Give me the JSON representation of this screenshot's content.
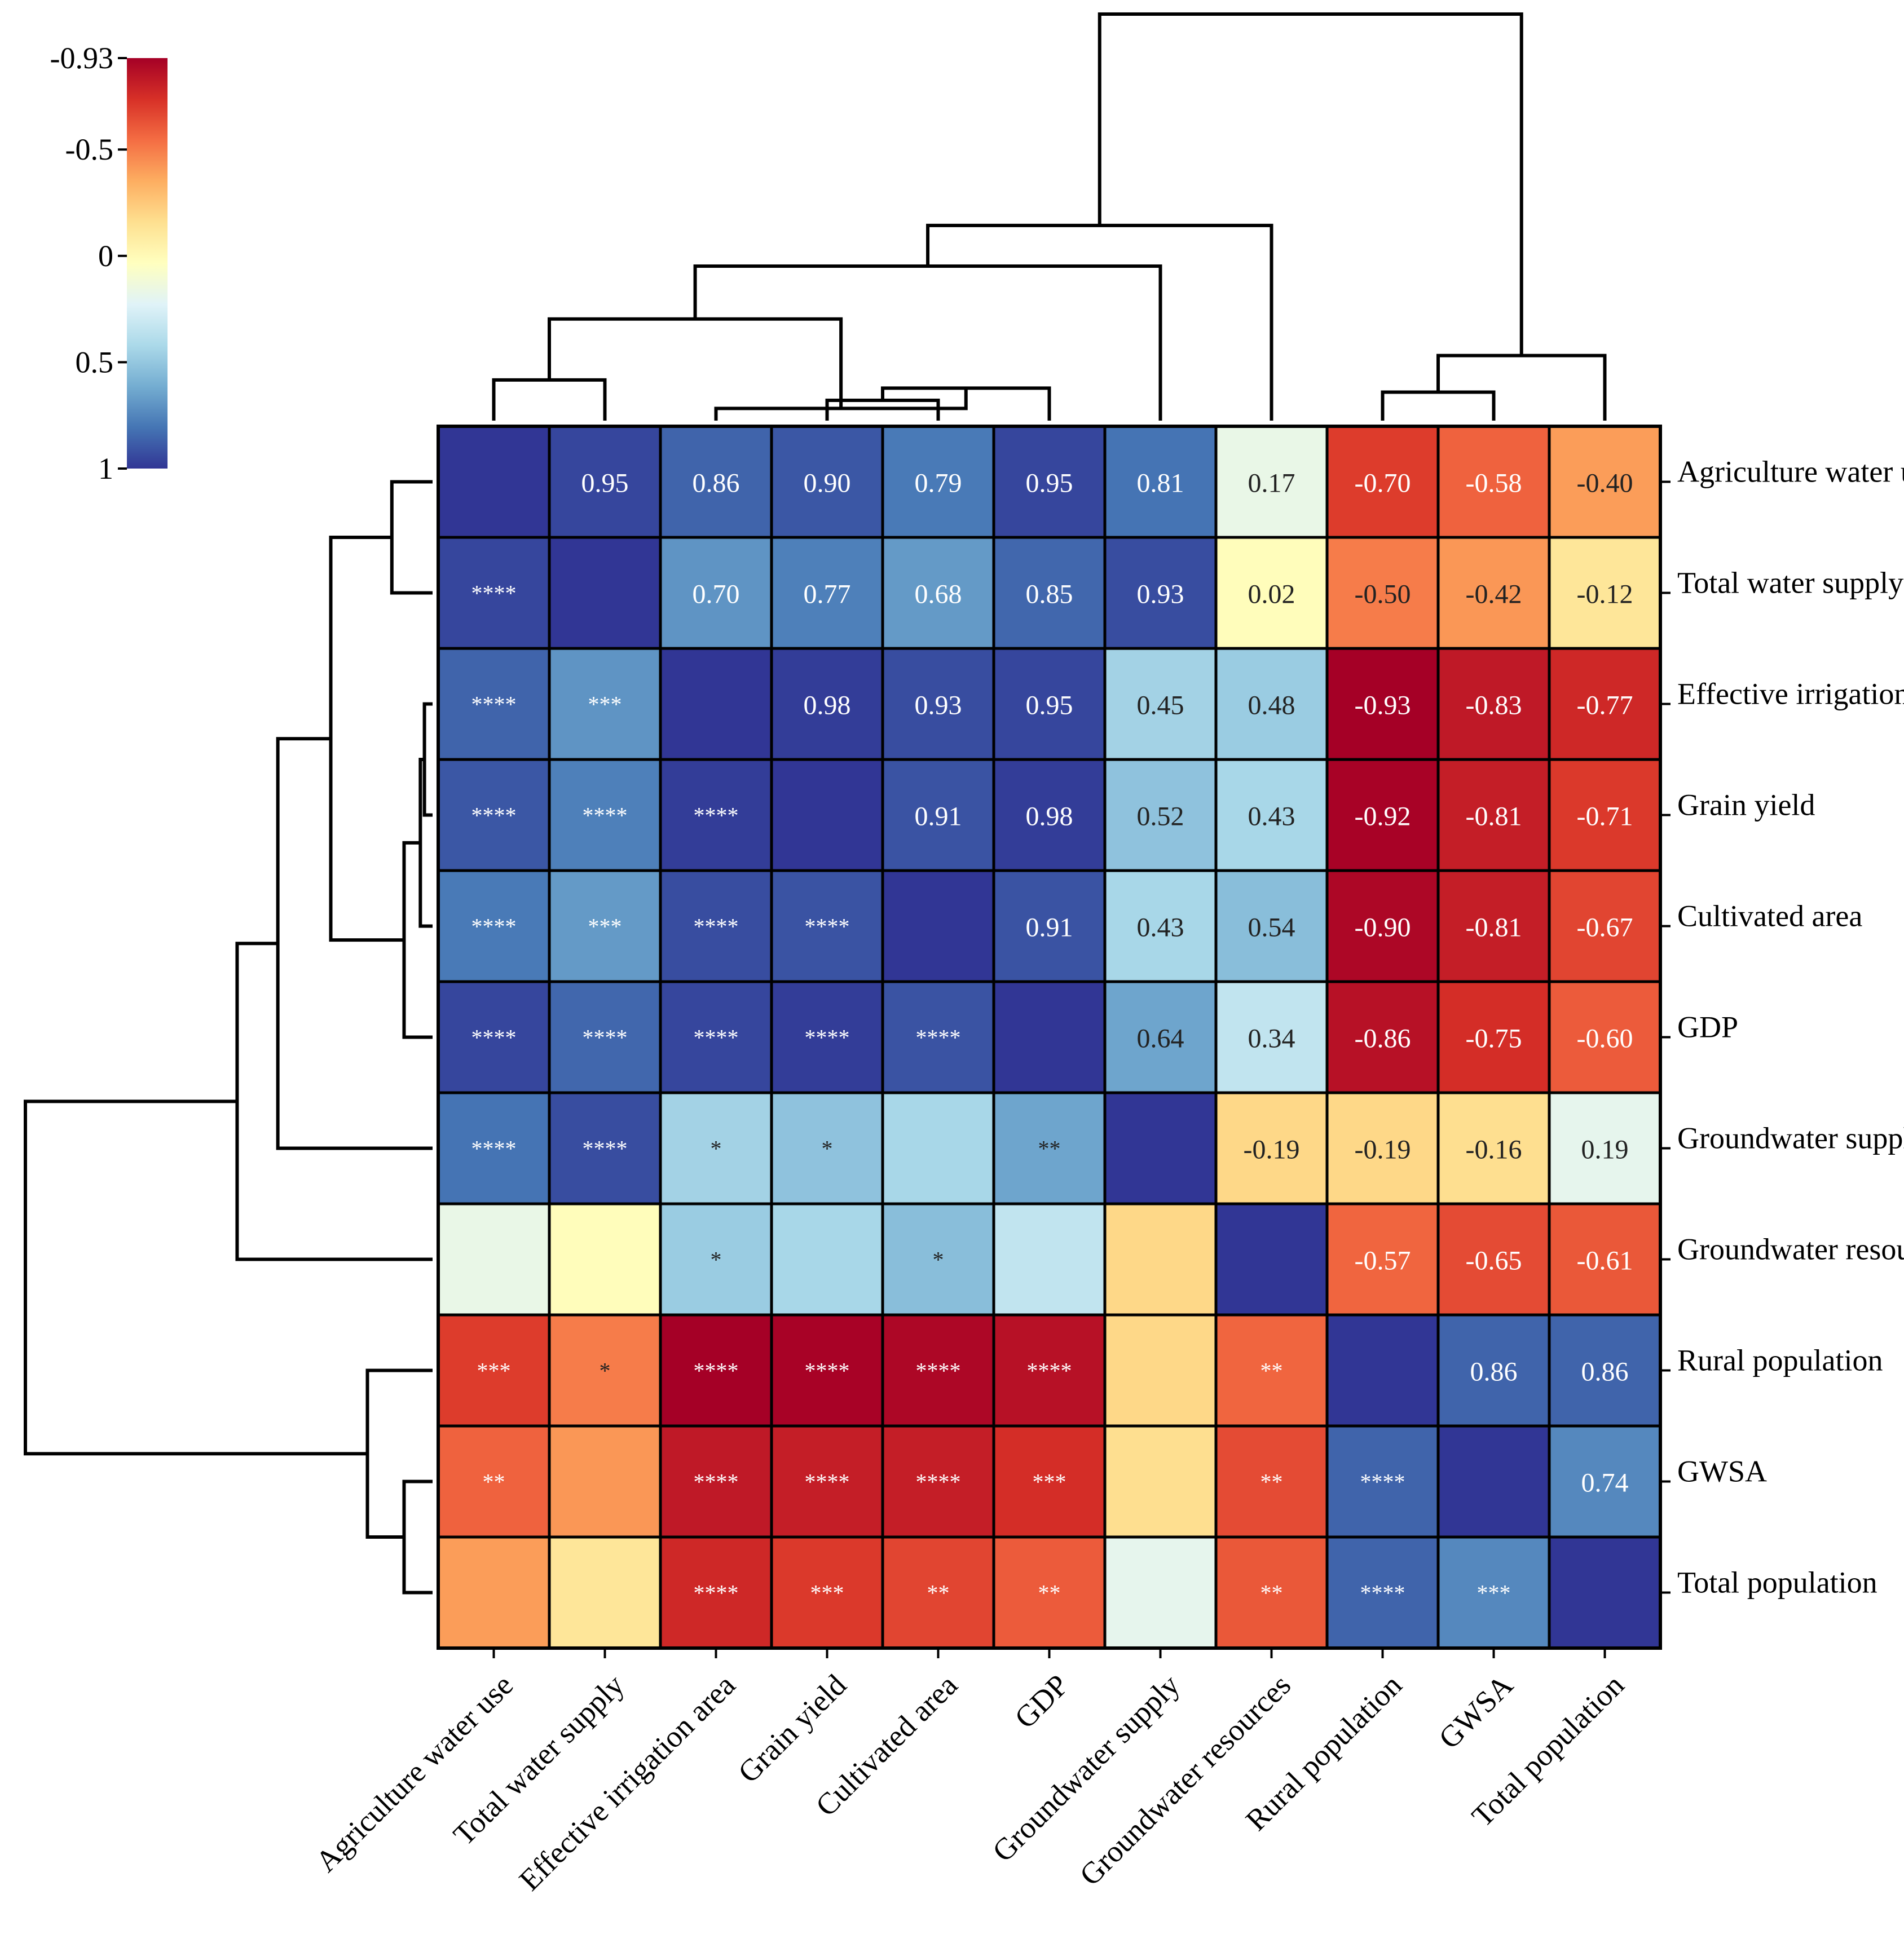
{
  "chart_data": {
    "type": "heatmap",
    "title": "",
    "xlabel": "",
    "ylabel": "",
    "labels": [
      "Agriculture water use",
      "Total water supply",
      "Effective irrigation area",
      "Grain yield",
      "Cultivated area",
      "GDP",
      "Groundwater supply",
      "Groundwater resources",
      "Rural population",
      "GWSA",
      "Total population"
    ],
    "correlations": [
      [
        1.0,
        0.95,
        0.86,
        0.9,
        0.79,
        0.95,
        0.81,
        0.17,
        -0.7,
        -0.58,
        -0.4
      ],
      [
        0.95,
        1.0,
        0.7,
        0.77,
        0.68,
        0.85,
        0.93,
        0.02,
        -0.5,
        -0.42,
        -0.12
      ],
      [
        0.86,
        0.7,
        1.0,
        0.98,
        0.93,
        0.95,
        0.45,
        0.48,
        -0.93,
        -0.83,
        -0.77
      ],
      [
        0.9,
        0.77,
        0.98,
        1.0,
        0.91,
        0.98,
        0.52,
        0.43,
        -0.92,
        -0.81,
        -0.71
      ],
      [
        0.79,
        0.68,
        0.93,
        0.91,
        1.0,
        0.91,
        0.43,
        0.54,
        -0.9,
        -0.81,
        -0.67
      ],
      [
        0.95,
        0.85,
        0.95,
        0.98,
        0.91,
        1.0,
        0.64,
        0.34,
        -0.86,
        -0.75,
        -0.6
      ],
      [
        0.81,
        0.93,
        0.45,
        0.52,
        0.43,
        0.64,
        1.0,
        -0.19,
        -0.19,
        -0.16,
        0.19
      ],
      [
        0.17,
        0.02,
        0.48,
        0.43,
        0.54,
        0.34,
        -0.19,
        1.0,
        -0.57,
        -0.65,
        -0.61
      ],
      [
        -0.7,
        -0.5,
        -0.93,
        -0.92,
        -0.9,
        -0.86,
        -0.19,
        -0.57,
        1.0,
        0.86,
        0.86
      ],
      [
        -0.58,
        -0.42,
        -0.83,
        -0.81,
        -0.81,
        -0.75,
        -0.16,
        -0.65,
        0.86,
        1.0,
        0.74
      ],
      [
        -0.4,
        -0.12,
        -0.77,
        -0.71,
        -0.67,
        -0.6,
        0.19,
        -0.61,
        0.86,
        0.74,
        1.0
      ]
    ],
    "cell_text": [
      [
        "",
        "0.95",
        "0.86",
        "0.90",
        "0.79",
        "0.95",
        "0.81",
        "0.17",
        "-0.70",
        "-0.58",
        "-0.40"
      ],
      [
        "****",
        "",
        "0.70",
        "0.77",
        "0.68",
        "0.85",
        "0.93",
        "0.02",
        "-0.50",
        "-0.42",
        "-0.12"
      ],
      [
        "****",
        "***",
        "",
        "0.98",
        "0.93",
        "0.95",
        "0.45",
        "0.48",
        "-0.93",
        "-0.83",
        "-0.77"
      ],
      [
        "****",
        "****",
        "****",
        "",
        "0.91",
        "0.98",
        "0.52",
        "0.43",
        "-0.92",
        "-0.81",
        "-0.71"
      ],
      [
        "****",
        "***",
        "****",
        "****",
        "",
        "0.91",
        "0.43",
        "0.54",
        "-0.90",
        "-0.81",
        "-0.67"
      ],
      [
        "****",
        "****",
        "****",
        "****",
        "****",
        "",
        "0.64",
        "0.34",
        "-0.86",
        "-0.75",
        "-0.60"
      ],
      [
        "****",
        "****",
        "*",
        "*",
        "",
        "**",
        "",
        "-0.19",
        "-0.19",
        "-0.16",
        "0.19"
      ],
      [
        "",
        "",
        "*",
        "",
        "*",
        "",
        "",
        "",
        "-0.57",
        "-0.65",
        "-0.61"
      ],
      [
        "***",
        "*",
        "****",
        "****",
        "****",
        "****",
        "",
        "**",
        "",
        "0.86",
        "0.86"
      ],
      [
        "**",
        "",
        "****",
        "****",
        "****",
        "***",
        "",
        "**",
        "****",
        "",
        "0.74"
      ],
      [
        "",
        "",
        "****",
        "***",
        "**",
        "**",
        "",
        "**",
        "****",
        "***",
        ""
      ]
    ],
    "colorbar": {
      "range": [
        -0.93,
        1
      ],
      "ticks": [
        -0.93,
        -0.5,
        0,
        0.5,
        1
      ],
      "tick_labels": [
        "-0.93",
        "-0.5",
        "0",
        "0.5",
        "1"
      ],
      "colors": [
        "#a50026",
        "#d73027",
        "#f46d43",
        "#fdae61",
        "#fee090",
        "#ffffbf",
        "#e0f3f8",
        "#abd9e9",
        "#74add1",
        "#4575b4",
        "#313695"
      ]
    },
    "column_dendrogram": [
      {
        "a": 0,
        "b": 1,
        "h": 0.1
      },
      {
        "a": 3,
        "b": 4,
        "h": 0.05
      },
      {
        "a": 5,
        "b": 3.5,
        "h": 0.08
      },
      {
        "a": 2,
        "b": 4.25,
        "h": 0.03
      },
      {
        "a": 0.5,
        "b": 3.125,
        "h": 0.25
      },
      {
        "a": 1.8125,
        "b": 6,
        "h": 0.38
      },
      {
        "a": 3.90625,
        "b": 7,
        "h": 0.48
      },
      {
        "a": 8,
        "b": 9,
        "h": 0.07
      },
      {
        "a": 8.5,
        "b": 10,
        "h": 0.16
      },
      {
        "a": 5.453125,
        "b": 9.25,
        "h": 1.0
      }
    ],
    "row_dendrogram": [
      {
        "a": 0,
        "b": 1,
        "h": 0.1
      },
      {
        "a": 2,
        "b": 3,
        "h": 0.02
      },
      {
        "a": 4,
        "b": 2.5,
        "h": 0.03
      },
      {
        "a": 5,
        "b": 3.25,
        "h": 0.07
      },
      {
        "a": 0.5,
        "b": 4.125,
        "h": 0.25
      },
      {
        "a": 2.3125,
        "b": 6,
        "h": 0.38
      },
      {
        "a": 4.15625,
        "b": 7,
        "h": 0.48
      },
      {
        "a": 9,
        "b": 10,
        "h": 0.07
      },
      {
        "a": 8,
        "b": 9.5,
        "h": 0.16
      },
      {
        "a": 5.578125,
        "b": 8.75,
        "h": 1.0
      }
    ]
  }
}
